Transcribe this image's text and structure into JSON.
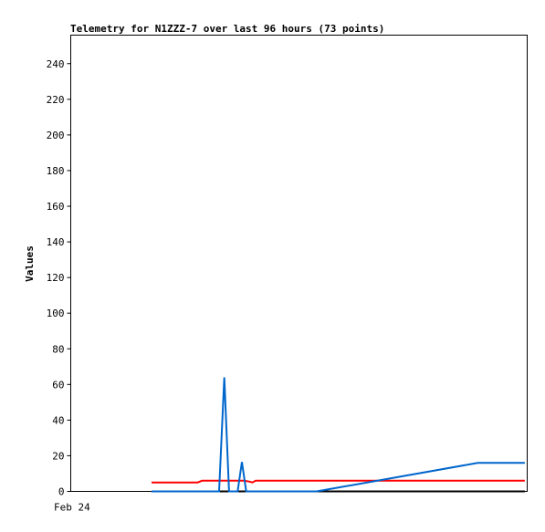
{
  "chart_data": {
    "type": "line",
    "title": "Telemetry for N1ZZZ-7 over last 96 hours (73 points)",
    "ylabel": "Values",
    "xlabel": "",
    "x_tick_labels": [
      "Feb 24"
    ],
    "y_ticks": [
      0,
      20,
      40,
      60,
      80,
      100,
      120,
      140,
      160,
      180,
      200,
      220,
      240
    ],
    "ylim": [
      0,
      256
    ],
    "xlim": [
      0,
      96
    ],
    "grid": false,
    "legend": "none",
    "series": [
      {
        "color": "#000000",
        "points": [
          [
            17,
            0
          ],
          [
            95.5,
            0
          ]
        ]
      },
      {
        "color": "#ff0000",
        "points": [
          [
            17,
            5
          ],
          [
            26.7,
            5
          ],
          [
            27.6,
            6
          ],
          [
            36.5,
            6
          ],
          [
            37.6,
            5.5
          ],
          [
            38.2,
            5
          ],
          [
            38.9,
            6
          ],
          [
            95.5,
            6
          ]
        ]
      },
      {
        "color": "#0066cc",
        "points": [
          [
            17,
            0
          ],
          [
            31.2,
            0
          ],
          [
            32.3,
            64
          ],
          [
            33.3,
            0
          ],
          [
            35.1,
            0
          ],
          [
            36,
            16.5
          ],
          [
            36.9,
            0
          ],
          [
            51.7,
            0
          ],
          [
            85.6,
            16
          ],
          [
            95.5,
            16
          ]
        ]
      }
    ]
  }
}
